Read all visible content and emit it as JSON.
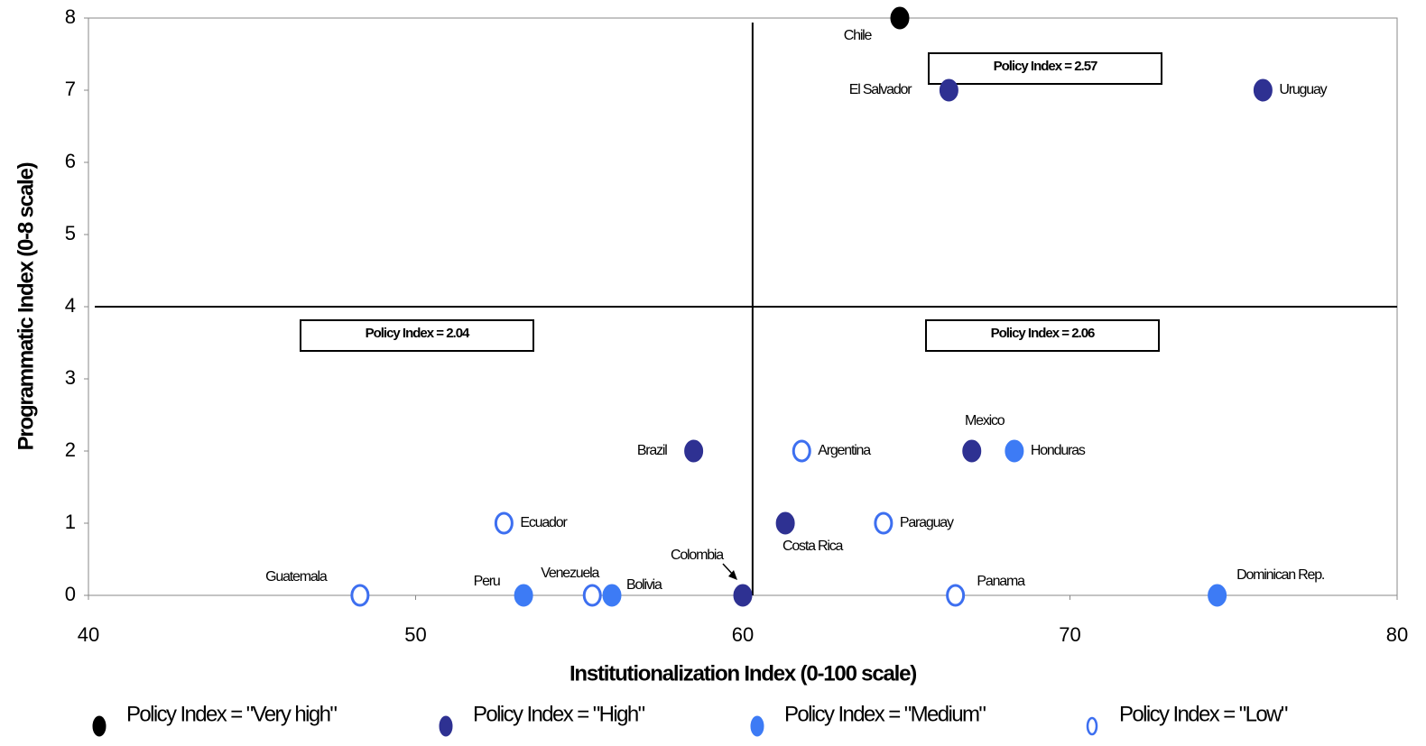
{
  "chart_data": {
    "type": "scatter",
    "xlabel": "Institutionalization Index (0-100 scale)",
    "ylabel": "Programmatic Index (0-8 scale)",
    "xlim": [
      40,
      80
    ],
    "xticks": [
      40,
      50,
      60,
      70,
      80
    ],
    "ylim": [
      0,
      8
    ],
    "yticks": [
      0,
      1,
      2,
      3,
      4,
      5,
      6,
      7,
      8
    ],
    "grid": false,
    "reference_lines": {
      "x": 60.3,
      "y": 4
    },
    "annotations": [
      "Policy Index = 2.57",
      "Policy Index = 2.04",
      "Policy Index = 2.06"
    ],
    "series": [
      {
        "name": "Policy Index = \"Very high\"",
        "color": "#000000",
        "marker": "filled",
        "labels": [
          "Chile"
        ],
        "x": [
          64.8
        ],
        "values": [
          8
        ]
      },
      {
        "name": "Policy Index = \"High\"",
        "color": "#2e3192",
        "marker": "filled",
        "labels": [
          "El Salvador",
          "Uruguay",
          "Brazil",
          "Mexico",
          "Costa Rica",
          "Colombia"
        ],
        "x": [
          66.3,
          75.9,
          58.5,
          67.0,
          61.3,
          60.0
        ],
        "values": [
          7,
          7,
          2,
          2,
          1,
          0
        ]
      },
      {
        "name": "Policy Index = \"Medium\"",
        "color": "#3d7bf5",
        "marker": "filled",
        "labels": [
          "Honduras",
          "Peru",
          "Bolivia",
          "Dominican Rep."
        ],
        "x": [
          68.3,
          53.3,
          56.0,
          74.5
        ],
        "values": [
          2,
          0,
          0,
          0
        ]
      },
      {
        "name": "Policy Index = \"Low\"",
        "color": "#3d6ff0",
        "marker": "open",
        "labels": [
          "Argentina",
          "Ecuador",
          "Paraguay",
          "Guatemala",
          "Venezuela",
          "Panama"
        ],
        "x": [
          61.8,
          52.7,
          64.3,
          48.3,
          55.4,
          66.5
        ],
        "values": [
          2,
          1,
          1,
          0,
          0,
          0
        ]
      }
    ]
  }
}
